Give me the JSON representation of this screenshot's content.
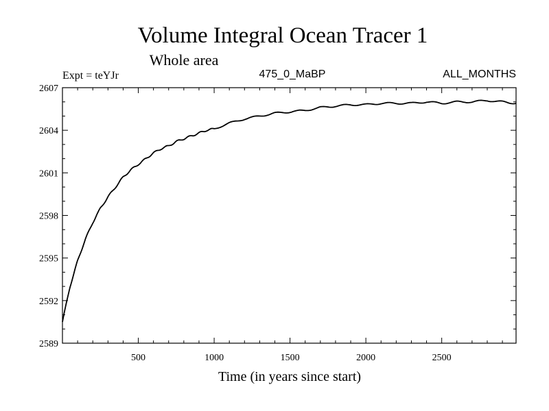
{
  "chart_data": {
    "type": "line",
    "title": "Volume Integral Ocean Tracer 1",
    "subtitle": "Whole area",
    "experiment": "Expt = teYJr",
    "period": "475_0_MaBP",
    "months": "ALL_MONTHS",
    "xlabel": "Time (in years since start)",
    "ylabel": "",
    "xlim": [
      0,
      2990
    ],
    "ylim": [
      2589,
      2607
    ],
    "xticks": [
      500,
      1000,
      1500,
      2000,
      2500
    ],
    "yticks": [
      2589,
      2592,
      2595,
      2598,
      2601,
      2604,
      2607
    ],
    "series": [
      {
        "name": "Tracer 1",
        "x": [
          0,
          50,
          100,
          150,
          200,
          250,
          300,
          350,
          400,
          450,
          500,
          550,
          600,
          650,
          700,
          750,
          800,
          850,
          900,
          950,
          1000,
          1100,
          1200,
          1300,
          1400,
          1500,
          1600,
          1700,
          1800,
          1900,
          2000,
          2100,
          2200,
          2300,
          2400,
          2500,
          2600,
          2700,
          2800,
          2900,
          2990
        ],
        "values": [
          2590.5,
          2593.0,
          2594.8,
          2596.3,
          2597.5,
          2598.5,
          2599.3,
          2600.0,
          2600.7,
          2601.2,
          2601.6,
          2602.0,
          2602.4,
          2602.7,
          2602.9,
          2603.2,
          2603.4,
          2603.6,
          2603.8,
          2604.0,
          2604.1,
          2604.5,
          2604.8,
          2605.0,
          2605.2,
          2605.3,
          2605.4,
          2605.6,
          2605.7,
          2605.8,
          2605.8,
          2605.9,
          2605.9,
          2605.9,
          2606.0,
          2605.9,
          2606.0,
          2606.0,
          2606.1,
          2606.0,
          2605.9
        ]
      }
    ]
  }
}
